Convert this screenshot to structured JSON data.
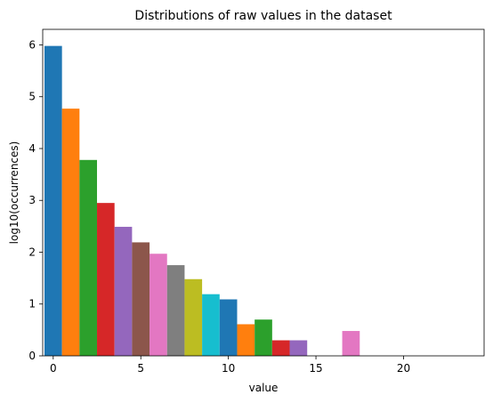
{
  "chart_data": {
    "type": "bar",
    "title": "Distributions of raw values in the dataset",
    "xlabel": "value",
    "ylabel": "log10(occurrences)",
    "xlim": [
      -0.6,
      24.6
    ],
    "ylim": [
      0,
      6.3
    ],
    "grid": false,
    "x_ticks": [
      0,
      5,
      10,
      15,
      20
    ],
    "y_ticks": [
      0,
      1,
      2,
      3,
      4,
      5,
      6
    ],
    "bars": [
      {
        "x": 0,
        "value": 5.98,
        "color": "#1f77b4"
      },
      {
        "x": 1,
        "value": 4.77,
        "color": "#ff7f0e"
      },
      {
        "x": 2,
        "value": 3.78,
        "color": "#2ca02c"
      },
      {
        "x": 3,
        "value": 2.95,
        "color": "#d62728"
      },
      {
        "x": 4,
        "value": 2.49,
        "color": "#9467bd"
      },
      {
        "x": 5,
        "value": 2.19,
        "color": "#8c564b"
      },
      {
        "x": 6,
        "value": 1.97,
        "color": "#e377c2"
      },
      {
        "x": 7,
        "value": 1.75,
        "color": "#7f7f7f"
      },
      {
        "x": 8,
        "value": 1.48,
        "color": "#bcbd22"
      },
      {
        "x": 9,
        "value": 1.19,
        "color": "#17becf"
      },
      {
        "x": 10,
        "value": 1.09,
        "color": "#1f77b4"
      },
      {
        "x": 11,
        "value": 0.61,
        "color": "#ff7f0e"
      },
      {
        "x": 12,
        "value": 0.7,
        "color": "#2ca02c"
      },
      {
        "x": 13,
        "value": 0.3,
        "color": "#d62728"
      },
      {
        "x": 14,
        "value": 0.3,
        "color": "#9467bd"
      },
      {
        "x": 17,
        "value": 0.48,
        "color": "#e377c2"
      }
    ]
  }
}
